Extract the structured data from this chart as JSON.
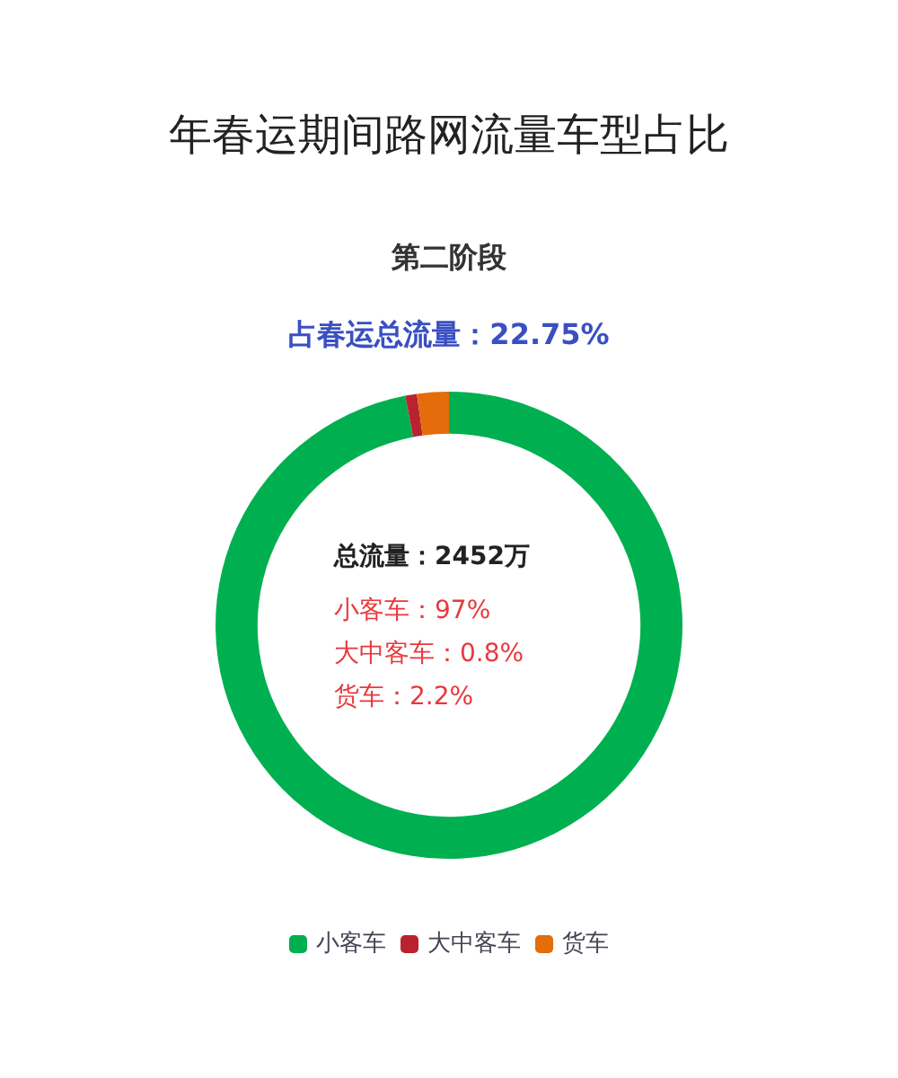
{
  "chart_data": {
    "type": "donut",
    "title": "年春运期间路网流量车型占比",
    "subtitle": "第二阶段",
    "annotations": [
      "占春运总流量：22.75%",
      "总流量：2452万",
      "小客车：97%",
      "大中客车：0.8%",
      "货车：2.2%"
    ],
    "categories": [
      "小客车",
      "大中客车",
      "货车"
    ],
    "values": [
      97,
      0.8,
      2.2
    ],
    "colors": [
      "#00b050",
      "#b8232f",
      "#e46c0a"
    ],
    "legend": "bottom"
  }
}
